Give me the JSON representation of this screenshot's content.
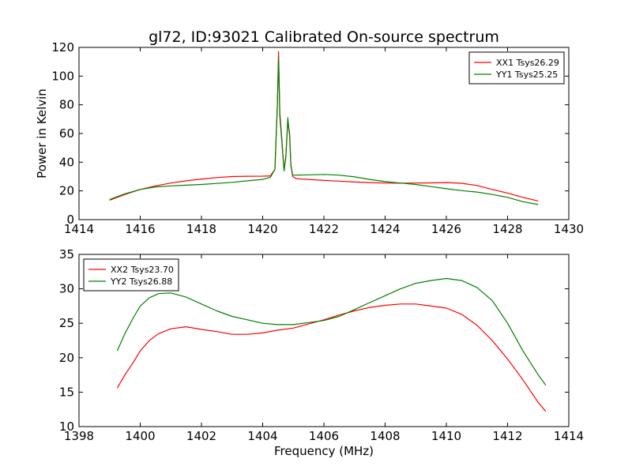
{
  "title": "gl72, ID:93021 Calibrated On-source spectrum",
  "colors": {
    "xx": "#ff0000",
    "yy": "#008000"
  },
  "chart_data": [
    {
      "type": "line",
      "ylabel": "Power in Kelvin",
      "xlabel": "",
      "xlim": [
        1414,
        1430
      ],
      "ylim": [
        0,
        120
      ],
      "xticks": [
        1414,
        1416,
        1418,
        1420,
        1422,
        1424,
        1426,
        1428,
        1430
      ],
      "yticks": [
        0,
        20,
        40,
        60,
        80,
        100,
        120
      ],
      "legend": "top-right",
      "series": [
        {
          "name": "XX1 Tsys26.29",
          "color": "#ff0000",
          "x": [
            1415.0,
            1415.5,
            1416.0,
            1416.5,
            1417.0,
            1417.5,
            1418.0,
            1418.5,
            1419.0,
            1419.5,
            1420.0,
            1420.25,
            1420.4,
            1420.48,
            1420.52,
            1420.56,
            1420.62,
            1420.7,
            1420.76,
            1420.82,
            1420.88,
            1420.92,
            1420.98,
            1421.1,
            1421.5,
            1422.0,
            1422.5,
            1423.0,
            1423.5,
            1424.0,
            1424.5,
            1425.0,
            1425.5,
            1426.0,
            1426.5,
            1427.0,
            1427.5,
            1428.0,
            1428.5,
            1429.0
          ],
          "y": [
            13.5,
            17.5,
            21,
            23.5,
            25.5,
            27,
            28.3,
            29.3,
            30,
            30.2,
            30.3,
            30.5,
            35,
            80,
            117,
            75,
            58,
            34,
            45,
            68,
            60,
            38,
            30,
            28.5,
            28,
            27.3,
            26.8,
            26.2,
            25.8,
            25.5,
            25.4,
            25.5,
            25.6,
            25.8,
            25.3,
            23.8,
            21,
            18.5,
            15.5,
            13
          ]
        },
        {
          "name": "YY1 Tsys25.25",
          "color": "#008000",
          "x": [
            1415.0,
            1415.5,
            1416.0,
            1416.5,
            1417.0,
            1417.5,
            1418.0,
            1418.5,
            1419.0,
            1419.5,
            1420.0,
            1420.25,
            1420.4,
            1420.48,
            1420.52,
            1420.56,
            1420.62,
            1420.7,
            1420.76,
            1420.82,
            1420.88,
            1420.92,
            1420.98,
            1421.1,
            1421.5,
            1422.0,
            1422.5,
            1423.0,
            1423.5,
            1424.0,
            1424.5,
            1425.0,
            1425.5,
            1426.0,
            1426.5,
            1427.0,
            1427.5,
            1428.0,
            1428.5,
            1429.0
          ],
          "y": [
            14,
            18,
            21,
            22.8,
            23.5,
            24,
            24.5,
            25.2,
            26,
            27,
            28,
            29.5,
            35,
            80,
            113,
            72,
            56,
            34,
            44,
            71,
            58,
            38,
            31,
            31,
            31.2,
            31.5,
            31,
            29.8,
            28,
            26.5,
            25.5,
            24.5,
            23,
            21.5,
            20.2,
            19.2,
            17.5,
            15.5,
            12.5,
            10.5
          ]
        }
      ]
    },
    {
      "type": "line",
      "ylabel": "",
      "xlabel": "Frequency (MHz)",
      "xlim": [
        1398,
        1414
      ],
      "ylim": [
        10,
        35
      ],
      "xticks": [
        1398,
        1400,
        1402,
        1404,
        1406,
        1408,
        1410,
        1412,
        1414
      ],
      "yticks": [
        10,
        15,
        20,
        25,
        30,
        35
      ],
      "legend": "top-left",
      "series": [
        {
          "name": "XX2 Tsys23.70",
          "color": "#ff0000",
          "x": [
            1399.25,
            1399.5,
            1399.8,
            1400.0,
            1400.3,
            1400.6,
            1401.0,
            1401.5,
            1402.0,
            1402.5,
            1403.0,
            1403.5,
            1404.0,
            1404.5,
            1405.0,
            1405.5,
            1406.0,
            1406.5,
            1407.0,
            1407.5,
            1408.0,
            1408.5,
            1409.0,
            1409.5,
            1410.0,
            1410.5,
            1411.0,
            1411.5,
            1412.0,
            1412.5,
            1413.0,
            1413.25
          ],
          "y": [
            15.6,
            17.5,
            19.5,
            21,
            22.5,
            23.5,
            24.2,
            24.5,
            24.1,
            23.8,
            23.4,
            23.4,
            23.6,
            24,
            24.3,
            24.9,
            25.5,
            26.2,
            26.8,
            27.3,
            27.6,
            27.8,
            27.8,
            27.5,
            27.2,
            26.3,
            24.7,
            22.5,
            19.8,
            16.8,
            13.5,
            12.2
          ]
        },
        {
          "name": "YY2 Tsys26.88",
          "color": "#008000",
          "x": [
            1399.25,
            1399.5,
            1399.8,
            1400.0,
            1400.3,
            1400.6,
            1401.0,
            1401.5,
            1402.0,
            1402.5,
            1403.0,
            1403.5,
            1404.0,
            1404.5,
            1405.0,
            1405.5,
            1406.0,
            1406.5,
            1407.0,
            1407.5,
            1408.0,
            1408.5,
            1409.0,
            1409.5,
            1410.0,
            1410.5,
            1411.0,
            1411.5,
            1412.0,
            1412.5,
            1413.0,
            1413.25
          ],
          "y": [
            21,
            23.5,
            26,
            27.5,
            28.7,
            29.3,
            29.4,
            28.8,
            27.8,
            26.8,
            26,
            25.5,
            25,
            24.8,
            24.8,
            25.1,
            25.4,
            26,
            27,
            28,
            29,
            30,
            30.8,
            31.2,
            31.5,
            31.2,
            30.2,
            28.3,
            25,
            21,
            17.5,
            16
          ]
        }
      ]
    }
  ]
}
